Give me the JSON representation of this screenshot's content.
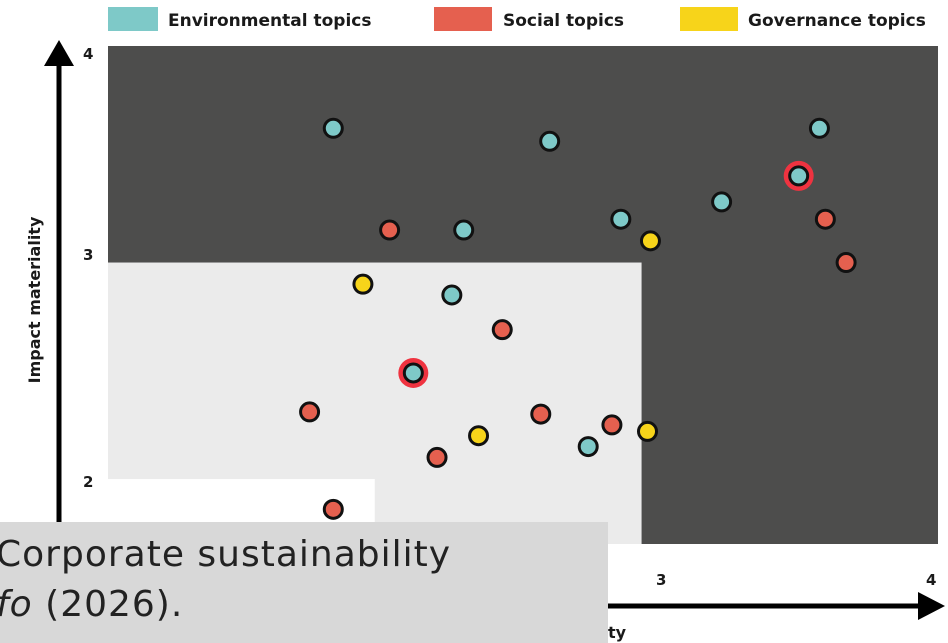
{
  "legend": [
    {
      "label": "Environmental topics",
      "color": "#7ec9c8"
    },
    {
      "label": "Social topics",
      "color": "#e5604f"
    },
    {
      "label": "Governance topics",
      "color": "#f7d41a"
    }
  ],
  "caption": {
    "line1": "Corporate sustainability",
    "line2_italic": "fo",
    "line2_rest": " (2026)."
  },
  "chart_data": {
    "type": "scatter",
    "title": "",
    "ylabel": "Impact materiality",
    "xlabel_visible": "ty",
    "x_ticks": [
      "3",
      "4"
    ],
    "y_ticks": [
      "2",
      "3",
      "4"
    ],
    "xlim": [
      1.2,
      4
    ],
    "ylim": [
      1.7,
      4
    ],
    "zones": [
      {
        "name": "high",
        "color": "#4d4d4c"
      },
      {
        "name": "medium",
        "x": [
          1.2,
          3
        ],
        "y": [
          1.7,
          3
        ],
        "color": "#ebebeb"
      },
      {
        "name": "low",
        "x": [
          1.2,
          2.1
        ],
        "y": [
          1.7,
          2
        ],
        "color": "#ffffff"
      }
    ],
    "series": [
      {
        "name": "Environmental topics",
        "color": "#7ec9c8",
        "points": [
          {
            "x": 1.96,
            "y": 3.62
          },
          {
            "x": 2.69,
            "y": 3.56
          },
          {
            "x": 3.6,
            "y": 3.62
          },
          {
            "x": 3.53,
            "y": 3.4,
            "highlight": true
          },
          {
            "x": 3.27,
            "y": 3.28
          },
          {
            "x": 2.93,
            "y": 3.2
          },
          {
            "x": 2.4,
            "y": 3.15
          },
          {
            "x": 2.36,
            "y": 2.85
          },
          {
            "x": 2.23,
            "y": 2.49,
            "highlight": true
          },
          {
            "x": 2.82,
            "y": 2.15
          }
        ]
      },
      {
        "name": "Social topics",
        "color": "#e5604f",
        "points": [
          {
            "x": 2.15,
            "y": 3.15
          },
          {
            "x": 3.62,
            "y": 3.2
          },
          {
            "x": 3.69,
            "y": 3.0
          },
          {
            "x": 2.53,
            "y": 2.69
          },
          {
            "x": 1.88,
            "y": 2.31
          },
          {
            "x": 2.66,
            "y": 2.3
          },
          {
            "x": 2.9,
            "y": 2.25
          },
          {
            "x": 2.31,
            "y": 2.1
          },
          {
            "x": 1.96,
            "y": 1.86
          }
        ]
      },
      {
        "name": "Governance topics",
        "color": "#f7d41a",
        "points": [
          {
            "x": 3.03,
            "y": 3.1
          },
          {
            "x": 2.06,
            "y": 2.9
          },
          {
            "x": 2.45,
            "y": 2.2
          },
          {
            "x": 3.02,
            "y": 2.22
          }
        ]
      }
    ]
  }
}
